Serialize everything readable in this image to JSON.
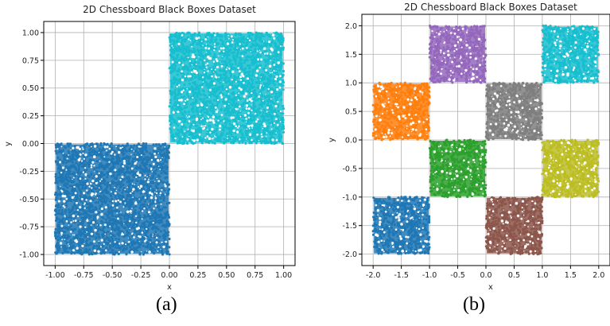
{
  "chart_data": [
    {
      "type": "scatter",
      "title": "2D Chessboard Black Boxes Dataset",
      "xlabel": "x",
      "ylabel": "y",
      "xlim": [
        -1.1,
        1.1
      ],
      "ylim": [
        -1.1,
        1.1
      ],
      "xticks": [
        "-1.00",
        "-0.75",
        "-0.50",
        "-0.25",
        "0.00",
        "0.25",
        "0.50",
        "0.75",
        "1.00"
      ],
      "yticks": [
        "-1.00",
        "-0.75",
        "-0.50",
        "-0.25",
        "0.00",
        "0.25",
        "0.50",
        "0.75",
        "1.00"
      ],
      "grid": true,
      "caption": "(a)",
      "boxes": [
        {
          "x": [
            -1.0,
            0.0
          ],
          "y": [
            -1.0,
            0.0
          ],
          "color": "#1f77b4"
        },
        {
          "x": [
            0.0,
            1.0
          ],
          "y": [
            0.0,
            1.0
          ],
          "color": "#17becf"
        }
      ]
    },
    {
      "type": "scatter",
      "title": "2D Chessboard Black Boxes Dataset",
      "xlabel": "x",
      "ylabel": "y",
      "xlim": [
        -2.2,
        2.2
      ],
      "ylim": [
        -2.2,
        2.2
      ],
      "xticks": [
        "-2.0",
        "-1.5",
        "-1.0",
        "-0.5",
        "0.0",
        "0.5",
        "1.0",
        "1.5",
        "2.0"
      ],
      "yticks": [
        "-2.0",
        "-1.5",
        "-1.0",
        "-0.5",
        "0.0",
        "0.5",
        "1.0",
        "1.5",
        "2.0"
      ],
      "grid": true,
      "caption": "(b)",
      "boxes": [
        {
          "x": [
            -2.0,
            -1.0
          ],
          "y": [
            -2.0,
            -1.0
          ],
          "color": "#1f77b4"
        },
        {
          "x": [
            -2.0,
            -1.0
          ],
          "y": [
            0.0,
            1.0
          ],
          "color": "#ff7f0e"
        },
        {
          "x": [
            -1.0,
            0.0
          ],
          "y": [
            -1.0,
            0.0
          ],
          "color": "#2ca02c"
        },
        {
          "x": [
            -1.0,
            0.0
          ],
          "y": [
            1.0,
            2.0
          ],
          "color": "#9467bd"
        },
        {
          "x": [
            0.0,
            1.0
          ],
          "y": [
            -2.0,
            -1.0
          ],
          "color": "#8c564b"
        },
        {
          "x": [
            0.0,
            1.0
          ],
          "y": [
            0.0,
            1.0
          ],
          "color": "#7f7f7f"
        },
        {
          "x": [
            1.0,
            2.0
          ],
          "y": [
            -1.0,
            0.0
          ],
          "color": "#bcbd22"
        },
        {
          "x": [
            1.0,
            2.0
          ],
          "y": [
            1.0,
            2.0
          ],
          "color": "#17becf"
        }
      ]
    }
  ]
}
